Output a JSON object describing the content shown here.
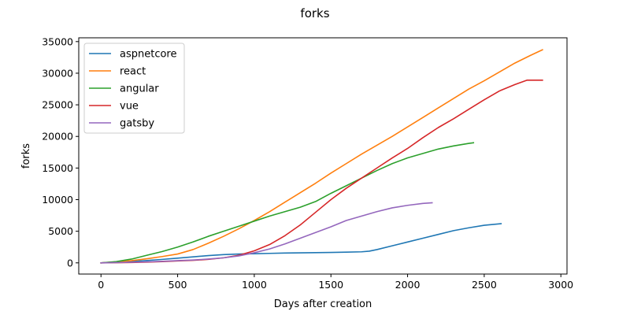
{
  "chart_data": {
    "type": "line",
    "title": "forks",
    "xlabel": "Days after creation",
    "ylabel": "forks",
    "xlim": [
      -145,
      3040
    ],
    "ylim": [
      -1770,
      35600
    ],
    "xticks": [
      0,
      500,
      1000,
      1500,
      2000,
      2500,
      3000
    ],
    "yticks": [
      0,
      5000,
      10000,
      15000,
      20000,
      25000,
      30000,
      35000
    ],
    "xtick_labels": [
      "0",
      "500",
      "1000",
      "1500",
      "2000",
      "2500",
      "3000"
    ],
    "ytick_labels": [
      "0",
      "5000",
      "10000",
      "15000",
      "20000",
      "25000",
      "30000",
      "35000"
    ],
    "grid": false,
    "legend_position": "upper-left",
    "series": [
      {
        "name": "aspnetcore",
        "color": "#1f77b4",
        "x": [
          0,
          100,
          200,
          300,
          400,
          500,
          600,
          700,
          800,
          900,
          1000,
          1100,
          1200,
          1300,
          1400,
          1500,
          1600,
          1700,
          1750,
          1800,
          1900,
          2000,
          2100,
          2200,
          2300,
          2400,
          2500,
          2610
        ],
        "y": [
          0,
          100,
          220,
          380,
          550,
          750,
          950,
          1150,
          1300,
          1400,
          1450,
          1500,
          1550,
          1580,
          1620,
          1650,
          1700,
          1750,
          1850,
          2100,
          2700,
          3300,
          3900,
          4500,
          5100,
          5550,
          5950,
          6200
        ]
      },
      {
        "name": "react",
        "color": "#ff7f0e",
        "x": [
          0,
          100,
          200,
          300,
          400,
          500,
          600,
          700,
          800,
          900,
          1000,
          1100,
          1200,
          1300,
          1400,
          1500,
          1600,
          1700,
          1800,
          1900,
          2000,
          2100,
          2200,
          2300,
          2400,
          2500,
          2600,
          2700,
          2800,
          2880
        ],
        "y": [
          0,
          150,
          350,
          650,
          1000,
          1400,
          2100,
          3100,
          4200,
          5400,
          6700,
          8100,
          9600,
          11100,
          12600,
          14200,
          15700,
          17200,
          18600,
          20000,
          21500,
          23000,
          24500,
          26000,
          27500,
          28800,
          30200,
          31600,
          32800,
          33700
        ]
      },
      {
        "name": "angular",
        "color": "#2ca02c",
        "x": [
          0,
          100,
          200,
          300,
          400,
          500,
          600,
          700,
          800,
          900,
          1000,
          1100,
          1200,
          1300,
          1400,
          1500,
          1600,
          1700,
          1800,
          1900,
          2000,
          2100,
          2200,
          2300,
          2400,
          2430
        ],
        "y": [
          0,
          200,
          600,
          1200,
          1800,
          2500,
          3300,
          4200,
          5000,
          5800,
          6600,
          7400,
          8100,
          8800,
          9700,
          11000,
          12200,
          13400,
          14600,
          15700,
          16600,
          17300,
          18000,
          18500,
          18900,
          19000
        ]
      },
      {
        "name": "vue",
        "color": "#d62728",
        "x": [
          0,
          100,
          200,
          300,
          400,
          500,
          600,
          700,
          800,
          900,
          1000,
          1100,
          1200,
          1300,
          1400,
          1500,
          1600,
          1700,
          1800,
          1900,
          2000,
          2100,
          2200,
          2300,
          2400,
          2500,
          2600,
          2700,
          2780,
          2880
        ],
        "y": [
          0,
          20,
          60,
          120,
          200,
          300,
          400,
          550,
          800,
          1200,
          1900,
          2900,
          4300,
          6000,
          8000,
          10000,
          11800,
          13400,
          15000,
          16600,
          18100,
          19800,
          21400,
          22800,
          24300,
          25800,
          27200,
          28200,
          28900,
          28900
        ]
      },
      {
        "name": "gatsby",
        "color": "#9467bd",
        "x": [
          0,
          100,
          200,
          300,
          400,
          500,
          600,
          700,
          800,
          900,
          1000,
          1100,
          1200,
          1300,
          1400,
          1500,
          1600,
          1700,
          1800,
          1900,
          2000,
          2100,
          2160
        ],
        "y": [
          0,
          50,
          100,
          170,
          250,
          350,
          450,
          600,
          800,
          1100,
          1600,
          2200,
          3000,
          3900,
          4800,
          5700,
          6700,
          7400,
          8100,
          8700,
          9100,
          9400,
          9500
        ]
      }
    ]
  }
}
